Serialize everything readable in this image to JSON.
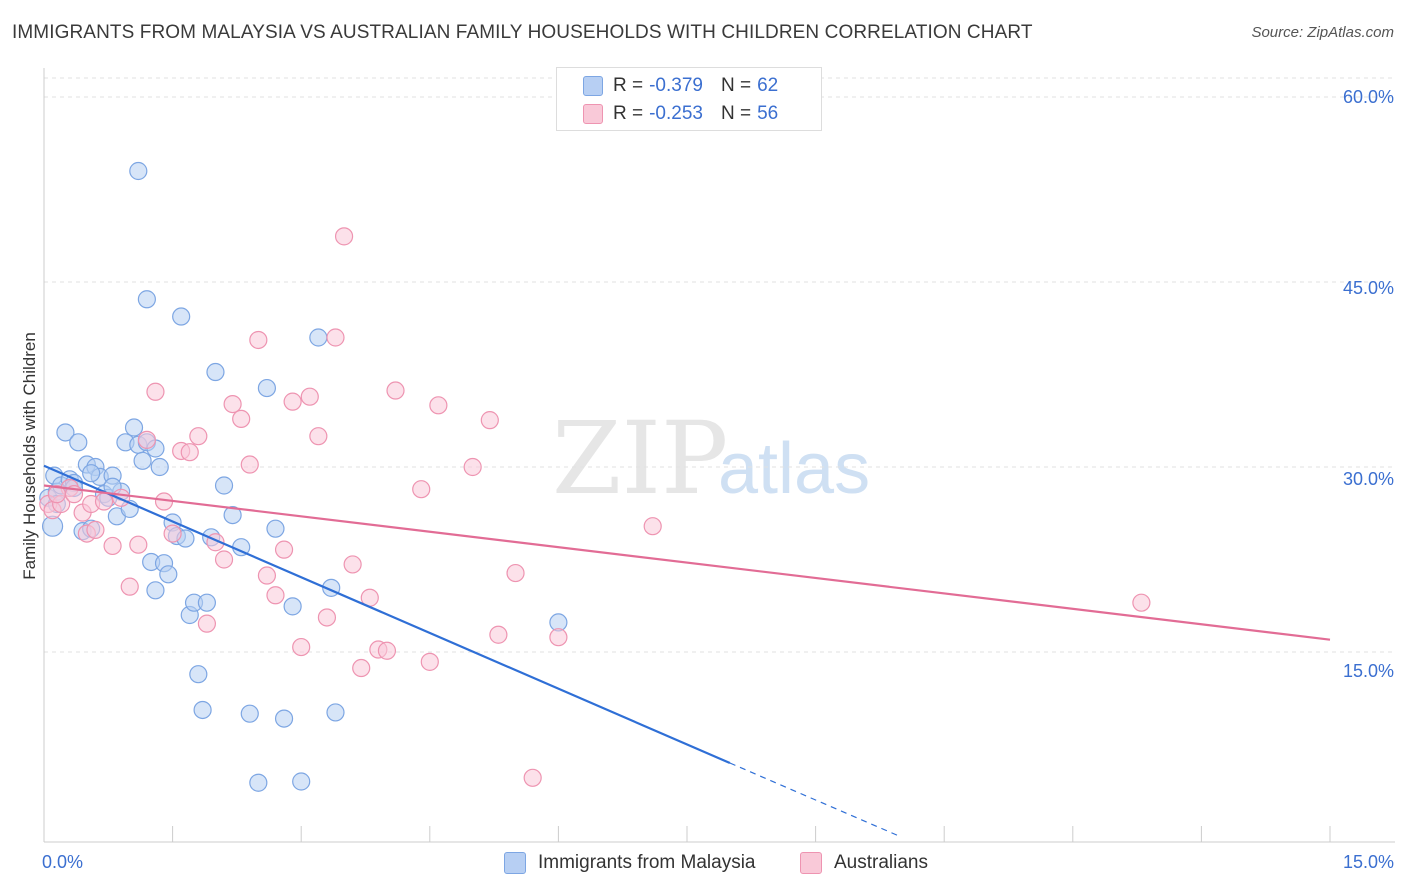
{
  "title": "IMMIGRANTS FROM MALAYSIA VS AUSTRALIAN FAMILY HOUSEHOLDS WITH CHILDREN CORRELATION CHART",
  "source": "Source: ZipAtlas.com",
  "watermark": {
    "zip": "ZIP",
    "atlas": "atlas"
  },
  "legend_top": {
    "r_label": "R =",
    "n_label": "N =",
    "rows": [
      {
        "r": "-0.379",
        "n": "62",
        "color": "#b7cff3",
        "border": "#7da6e3"
      },
      {
        "r": "-0.253",
        "n": "56",
        "color": "#f9c9d8",
        "border": "#ee94b1"
      }
    ]
  },
  "chart_data": {
    "type": "scatter",
    "title": "IMMIGRANTS FROM MALAYSIA VS AUSTRALIAN FAMILY HOUSEHOLDS WITH CHILDREN CORRELATION CHART",
    "xlabel": "",
    "ylabel": "Family Households with Children",
    "xlim": [
      0,
      15
    ],
    "ylim": [
      0,
      62
    ],
    "x_ticks": [
      "0.0%",
      "15.0%"
    ],
    "y_ticks": [
      "60.0%",
      "45.0%",
      "30.0%",
      "15.0%"
    ],
    "y_tick_values": [
      60,
      45,
      30,
      15
    ],
    "grid": true,
    "legend_placement": "top-center",
    "series": [
      {
        "name": "Immigrants from Malaysia",
        "color": "#7da6e3",
        "fill": "#b7cff3",
        "trend": {
          "x0": 0,
          "y0": 30.1,
          "x1": 8.0,
          "y1": 6.0,
          "dash_to_x": 10.0,
          "dash_to_y": 0.0,
          "line_color": "#2f6fd6"
        },
        "points": [
          [
            0.05,
            27.5
          ],
          [
            0.1,
            25.2
          ],
          [
            0.12,
            29.3
          ],
          [
            0.15,
            28.0
          ],
          [
            0.2,
            28.5
          ],
          [
            0.25,
            32.8
          ],
          [
            0.3,
            29.0
          ],
          [
            0.35,
            28.7
          ],
          [
            0.4,
            32.0
          ],
          [
            0.45,
            24.8
          ],
          [
            0.5,
            30.2
          ],
          [
            0.55,
            25.0
          ],
          [
            0.6,
            30.0
          ],
          [
            0.65,
            29.2
          ],
          [
            0.7,
            27.8
          ],
          [
            0.75,
            27.5
          ],
          [
            0.8,
            29.3
          ],
          [
            0.85,
            26.0
          ],
          [
            0.9,
            28.0
          ],
          [
            0.95,
            32.0
          ],
          [
            1.0,
            26.6
          ],
          [
            1.05,
            33.2
          ],
          [
            1.1,
            31.8
          ],
          [
            1.15,
            30.5
          ],
          [
            1.2,
            32.0
          ],
          [
            1.25,
            22.3
          ],
          [
            1.3,
            20.0
          ],
          [
            1.35,
            30.0
          ],
          [
            1.4,
            22.2
          ],
          [
            1.45,
            21.3
          ],
          [
            1.5,
            25.5
          ],
          [
            1.55,
            24.4
          ],
          [
            1.6,
            42.2
          ],
          [
            1.65,
            24.2
          ],
          [
            1.7,
            18.0
          ],
          [
            1.75,
            19.0
          ],
          [
            1.8,
            13.2
          ],
          [
            1.85,
            10.3
          ],
          [
            1.9,
            19.0
          ],
          [
            1.95,
            24.3
          ],
          [
            1.1,
            54.0
          ],
          [
            1.2,
            43.6
          ],
          [
            2.0,
            37.7
          ],
          [
            2.1,
            28.5
          ],
          [
            2.2,
            26.1
          ],
          [
            2.3,
            23.5
          ],
          [
            2.4,
            10.0
          ],
          [
            2.5,
            4.4
          ],
          [
            2.6,
            36.4
          ],
          [
            2.7,
            25.0
          ],
          [
            2.8,
            9.6
          ],
          [
            2.9,
            18.7
          ],
          [
            3.0,
            4.5
          ],
          [
            3.2,
            40.5
          ],
          [
            3.35,
            20.2
          ],
          [
            3.4,
            10.1
          ],
          [
            0.15,
            27.0
          ],
          [
            0.55,
            29.5
          ],
          [
            0.35,
            28.3
          ],
          [
            0.8,
            28.4
          ],
          [
            6.0,
            17.4
          ],
          [
            1.3,
            31.5
          ]
        ]
      },
      {
        "name": "Australians",
        "color": "#ee94b1",
        "fill": "#f9c9d8",
        "trend": {
          "x0": 0,
          "y0": 28.5,
          "x1": 15.0,
          "y1": 16.0,
          "line_color": "#e26c95"
        },
        "points": [
          [
            0.05,
            27.0
          ],
          [
            0.1,
            26.5
          ],
          [
            0.2,
            27.0
          ],
          [
            0.3,
            28.3
          ],
          [
            0.35,
            27.8
          ],
          [
            0.45,
            26.3
          ],
          [
            0.5,
            24.6
          ],
          [
            0.55,
            27.0
          ],
          [
            0.6,
            24.9
          ],
          [
            0.7,
            27.2
          ],
          [
            0.8,
            23.6
          ],
          [
            0.9,
            27.5
          ],
          [
            1.0,
            20.3
          ],
          [
            1.1,
            23.7
          ],
          [
            1.2,
            32.2
          ],
          [
            1.3,
            36.1
          ],
          [
            1.4,
            27.2
          ],
          [
            1.5,
            24.6
          ],
          [
            1.6,
            31.3
          ],
          [
            1.7,
            31.2
          ],
          [
            1.8,
            32.5
          ],
          [
            1.9,
            17.3
          ],
          [
            2.0,
            23.9
          ],
          [
            2.1,
            22.5
          ],
          [
            2.2,
            35.1
          ],
          [
            2.3,
            33.9
          ],
          [
            2.4,
            30.2
          ],
          [
            2.5,
            40.3
          ],
          [
            2.6,
            21.2
          ],
          [
            2.7,
            19.6
          ],
          [
            2.8,
            23.3
          ],
          [
            2.9,
            35.3
          ],
          [
            3.0,
            15.4
          ],
          [
            3.1,
            35.7
          ],
          [
            3.2,
            32.5
          ],
          [
            3.3,
            17.8
          ],
          [
            3.4,
            40.5
          ],
          [
            3.5,
            48.7
          ],
          [
            3.6,
            22.1
          ],
          [
            3.7,
            13.7
          ],
          [
            3.8,
            19.4
          ],
          [
            3.9,
            15.2
          ],
          [
            4.0,
            15.1
          ],
          [
            4.1,
            36.2
          ],
          [
            4.4,
            28.2
          ],
          [
            4.5,
            14.2
          ],
          [
            4.6,
            35.0
          ],
          [
            5.0,
            30.0
          ],
          [
            5.2,
            33.8
          ],
          [
            5.3,
            16.4
          ],
          [
            5.5,
            21.4
          ],
          [
            5.7,
            4.8
          ],
          [
            6.0,
            16.2
          ],
          [
            7.1,
            25.2
          ],
          [
            12.8,
            19.0
          ],
          [
            0.15,
            27.8
          ]
        ]
      }
    ]
  },
  "legend_bottom": [
    "Immigrants from Malaysia",
    "Australians"
  ]
}
